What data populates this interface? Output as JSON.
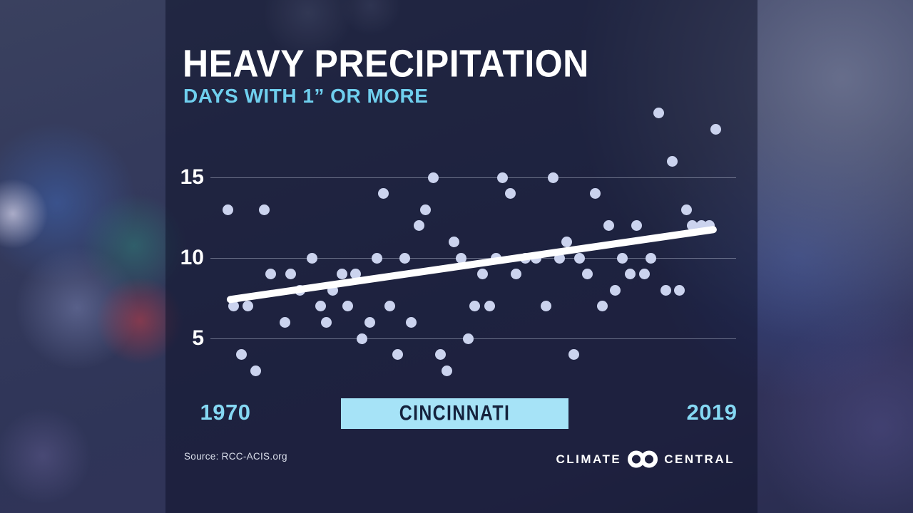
{
  "header": {
    "title": "HEAVY PRECIPITATION",
    "subtitle": "DAYS WITH 1” OR MORE"
  },
  "x_axis": {
    "start_label": "1970",
    "end_label": "2019"
  },
  "badge": {
    "label": "CINCINNATI"
  },
  "footer": {
    "source": "Source: RCC-ACIS.org",
    "logo_left": "CLIMATE",
    "logo_right": "CENTRAL"
  },
  "colors": {
    "title": "#ffffff",
    "subtitle": "#6fcfee",
    "axis_year_labels": "#85d8f3",
    "badge_bg": "#a6e3f7",
    "badge_text": "#15223d",
    "point": "#cbd3ee",
    "trend": "#ffffff",
    "gridline": "rgba(202,208,226,0.45)"
  },
  "chart_data": {
    "type": "scatter",
    "title": "HEAVY PRECIPITATION",
    "subtitle": "DAYS WITH 1” OR MORE",
    "location": "CINCINNATI",
    "source": "RCC-ACIS.org",
    "xlim": [
      1970,
      2019
    ],
    "x_tick_labels": [
      "1970",
      "2019"
    ],
    "y_gridlines": [
      5,
      10,
      15
    ],
    "ylim_shown": [
      3,
      19
    ],
    "legend": "none",
    "trend_line": {
      "start_value": 7.4,
      "end_value": 11.8
    },
    "points": [
      {
        "x_frac": 0.0,
        "days": 13
      },
      {
        "x_frac": 0.013,
        "days": 7
      },
      {
        "x_frac": 0.028,
        "days": 4
      },
      {
        "x_frac": 0.042,
        "days": 7
      },
      {
        "x_frac": 0.058,
        "days": 3
      },
      {
        "x_frac": 0.075,
        "days": 13
      },
      {
        "x_frac": 0.088,
        "days": 9
      },
      {
        "x_frac": 0.117,
        "days": 6
      },
      {
        "x_frac": 0.13,
        "days": 9
      },
      {
        "x_frac": 0.149,
        "days": 8
      },
      {
        "x_frac": 0.173,
        "days": 10
      },
      {
        "x_frac": 0.19,
        "days": 7
      },
      {
        "x_frac": 0.203,
        "days": 6
      },
      {
        "x_frac": 0.216,
        "days": 8
      },
      {
        "x_frac": 0.234,
        "days": 9
      },
      {
        "x_frac": 0.246,
        "days": 7
      },
      {
        "x_frac": 0.262,
        "days": 9
      },
      {
        "x_frac": 0.275,
        "days": 5
      },
      {
        "x_frac": 0.291,
        "days": 6
      },
      {
        "x_frac": 0.306,
        "days": 10
      },
      {
        "x_frac": 0.319,
        "days": 14
      },
      {
        "x_frac": 0.332,
        "days": 7
      },
      {
        "x_frac": 0.348,
        "days": 4
      },
      {
        "x_frac": 0.363,
        "days": 10
      },
      {
        "x_frac": 0.377,
        "days": 6
      },
      {
        "x_frac": 0.392,
        "days": 12
      },
      {
        "x_frac": 0.405,
        "days": 13
      },
      {
        "x_frac": 0.421,
        "days": 15
      },
      {
        "x_frac": 0.436,
        "days": 4
      },
      {
        "x_frac": 0.45,
        "days": 3
      },
      {
        "x_frac": 0.464,
        "days": 11
      },
      {
        "x_frac": 0.478,
        "days": 10
      },
      {
        "x_frac": 0.493,
        "days": 5
      },
      {
        "x_frac": 0.507,
        "days": 7
      },
      {
        "x_frac": 0.522,
        "days": 9
      },
      {
        "x_frac": 0.537,
        "days": 7
      },
      {
        "x_frac": 0.55,
        "days": 10
      },
      {
        "x_frac": 0.564,
        "days": 15
      },
      {
        "x_frac": 0.579,
        "days": 14
      },
      {
        "x_frac": 0.592,
        "days": 9
      },
      {
        "x_frac": 0.611,
        "days": 10
      },
      {
        "x_frac": 0.632,
        "days": 10
      },
      {
        "x_frac": 0.652,
        "days": 7
      },
      {
        "x_frac": 0.668,
        "days": 15
      },
      {
        "x_frac": 0.68,
        "days": 10
      },
      {
        "x_frac": 0.695,
        "days": 11
      },
      {
        "x_frac": 0.709,
        "days": 4
      },
      {
        "x_frac": 0.722,
        "days": 10
      },
      {
        "x_frac": 0.738,
        "days": 9
      },
      {
        "x_frac": 0.753,
        "days": 14
      },
      {
        "x_frac": 0.768,
        "days": 7
      },
      {
        "x_frac": 0.781,
        "days": 12
      },
      {
        "x_frac": 0.794,
        "days": 8
      },
      {
        "x_frac": 0.809,
        "days": 10
      },
      {
        "x_frac": 0.825,
        "days": 9
      },
      {
        "x_frac": 0.839,
        "days": 12
      },
      {
        "x_frac": 0.854,
        "days": 9
      },
      {
        "x_frac": 0.867,
        "days": 10
      },
      {
        "x_frac": 0.883,
        "days": 19
      },
      {
        "x_frac": 0.898,
        "days": 8
      },
      {
        "x_frac": 0.911,
        "days": 16
      },
      {
        "x_frac": 0.926,
        "days": 8
      },
      {
        "x_frac": 0.94,
        "days": 13
      },
      {
        "x_frac": 0.953,
        "days": 12
      },
      {
        "x_frac": 0.971,
        "days": 12
      },
      {
        "x_frac": 0.987,
        "days": 12
      },
      {
        "x_frac": 1.0,
        "days": 18
      }
    ]
  }
}
